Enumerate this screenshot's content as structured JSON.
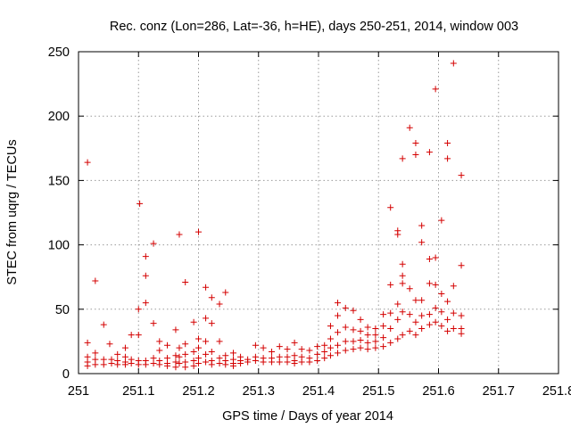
{
  "chart_data": {
    "type": "scatter",
    "title": "Rec. conz (Lon=286, Lat=-36, h=HE), days 250-251, 2014, window 003",
    "xlabel": "GPS time / Days of year 2014",
    "ylabel": "STEC from uqrg / TECUs",
    "xlim": [
      251,
      251.8
    ],
    "ylim": [
      0,
      250
    ],
    "xticks": [
      251,
      251.1,
      251.2,
      251.3,
      251.4,
      251.5,
      251.6,
      251.7,
      251.8
    ],
    "xtick_labels": [
      "251",
      "251.1",
      "251.2",
      "251.3",
      "251.4",
      "251.5",
      "251.6",
      "251.7",
      "251.8"
    ],
    "yticks": [
      0,
      50,
      100,
      150,
      200,
      250
    ],
    "ytick_labels": [
      "0",
      "50",
      "100",
      "150",
      "200",
      "250"
    ],
    "grid": true,
    "marker": "+",
    "color": "#d40000",
    "points": [
      [
        251.015,
        164
      ],
      [
        251.015,
        24
      ],
      [
        251.015,
        13
      ],
      [
        251.015,
        9
      ],
      [
        251.015,
        6
      ],
      [
        251.028,
        72
      ],
      [
        251.028,
        16
      ],
      [
        251.028,
        11
      ],
      [
        251.028,
        7
      ],
      [
        251.042,
        38
      ],
      [
        251.042,
        11
      ],
      [
        251.042,
        7
      ],
      [
        251.052,
        23
      ],
      [
        251.055,
        11
      ],
      [
        251.055,
        8
      ],
      [
        251.065,
        15
      ],
      [
        251.065,
        10
      ],
      [
        251.065,
        7
      ],
      [
        251.078,
        20
      ],
      [
        251.078,
        13
      ],
      [
        251.078,
        9
      ],
      [
        251.078,
        7
      ],
      [
        251.088,
        30
      ],
      [
        251.088,
        11
      ],
      [
        251.088,
        8
      ],
      [
        251.1,
        50
      ],
      [
        251.1,
        30
      ],
      [
        251.1,
        10
      ],
      [
        251.1,
        7
      ],
      [
        251.102,
        132
      ],
      [
        251.112,
        91
      ],
      [
        251.112,
        76
      ],
      [
        251.112,
        55
      ],
      [
        251.112,
        10
      ],
      [
        251.112,
        7
      ],
      [
        251.125,
        101
      ],
      [
        251.125,
        39
      ],
      [
        251.125,
        12
      ],
      [
        251.125,
        8
      ],
      [
        251.135,
        25
      ],
      [
        251.135,
        18
      ],
      [
        251.135,
        10
      ],
      [
        251.135,
        7
      ],
      [
        251.148,
        22
      ],
      [
        251.148,
        12
      ],
      [
        251.148,
        8
      ],
      [
        251.148,
        6
      ],
      [
        251.162,
        34
      ],
      [
        251.162,
        14
      ],
      [
        251.162,
        9
      ],
      [
        251.162,
        5
      ],
      [
        251.168,
        108
      ],
      [
        251.168,
        20
      ],
      [
        251.168,
        13
      ],
      [
        251.168,
        8
      ],
      [
        251.178,
        71
      ],
      [
        251.178,
        23
      ],
      [
        251.178,
        15
      ],
      [
        251.178,
        9
      ],
      [
        251.178,
        5
      ],
      [
        251.192,
        40
      ],
      [
        251.192,
        17
      ],
      [
        251.192,
        10
      ],
      [
        251.192,
        6
      ],
      [
        251.2,
        110
      ],
      [
        251.2,
        27
      ],
      [
        251.2,
        20
      ],
      [
        251.2,
        12
      ],
      [
        251.2,
        8
      ],
      [
        251.212,
        67
      ],
      [
        251.212,
        43
      ],
      [
        251.212,
        25
      ],
      [
        251.212,
        15
      ],
      [
        251.212,
        9
      ],
      [
        251.222,
        59
      ],
      [
        251.222,
        39
      ],
      [
        251.222,
        17
      ],
      [
        251.222,
        10
      ],
      [
        251.222,
        7
      ],
      [
        251.235,
        54
      ],
      [
        251.235,
        25
      ],
      [
        251.235,
        12
      ],
      [
        251.235,
        8
      ],
      [
        251.245,
        63
      ],
      [
        251.245,
        14
      ],
      [
        251.245,
        10
      ],
      [
        251.245,
        7
      ],
      [
        251.258,
        16
      ],
      [
        251.258,
        11
      ],
      [
        251.258,
        8
      ],
      [
        251.258,
        6
      ],
      [
        251.27,
        13
      ],
      [
        251.27,
        10
      ],
      [
        251.27,
        8
      ],
      [
        251.282,
        11
      ],
      [
        251.282,
        9
      ],
      [
        251.295,
        22
      ],
      [
        251.295,
        13
      ],
      [
        251.295,
        10
      ],
      [
        251.308,
        20
      ],
      [
        251.308,
        12
      ],
      [
        251.308,
        9
      ],
      [
        251.322,
        17
      ],
      [
        251.322,
        12
      ],
      [
        251.322,
        9
      ],
      [
        251.335,
        21
      ],
      [
        251.335,
        13
      ],
      [
        251.335,
        9
      ],
      [
        251.348,
        19
      ],
      [
        251.348,
        13
      ],
      [
        251.348,
        9
      ],
      [
        251.36,
        24
      ],
      [
        251.36,
        14
      ],
      [
        251.36,
        10
      ],
      [
        251.36,
        8
      ],
      [
        251.372,
        19
      ],
      [
        251.372,
        13
      ],
      [
        251.372,
        9
      ],
      [
        251.385,
        18
      ],
      [
        251.385,
        12
      ],
      [
        251.385,
        9
      ],
      [
        251.398,
        21
      ],
      [
        251.398,
        15
      ],
      [
        251.398,
        10
      ],
      [
        251.41,
        22
      ],
      [
        251.41,
        17
      ],
      [
        251.41,
        12
      ],
      [
        251.42,
        37
      ],
      [
        251.42,
        27
      ],
      [
        251.42,
        20
      ],
      [
        251.42,
        14
      ],
      [
        251.432,
        55
      ],
      [
        251.432,
        45
      ],
      [
        251.432,
        32
      ],
      [
        251.432,
        22
      ],
      [
        251.432,
        16
      ],
      [
        251.445,
        51
      ],
      [
        251.445,
        36
      ],
      [
        251.445,
        25
      ],
      [
        251.445,
        18
      ],
      [
        251.458,
        49
      ],
      [
        251.458,
        34
      ],
      [
        251.458,
        25
      ],
      [
        251.458,
        19
      ],
      [
        251.47,
        42
      ],
      [
        251.47,
        33
      ],
      [
        251.47,
        26
      ],
      [
        251.47,
        20
      ],
      [
        251.482,
        36
      ],
      [
        251.482,
        30
      ],
      [
        251.482,
        24
      ],
      [
        251.482,
        19
      ],
      [
        251.495,
        35
      ],
      [
        251.495,
        30
      ],
      [
        251.495,
        25
      ],
      [
        251.495,
        20
      ],
      [
        251.508,
        46
      ],
      [
        251.508,
        37
      ],
      [
        251.508,
        28
      ],
      [
        251.508,
        21
      ],
      [
        251.52,
        129
      ],
      [
        251.52,
        69
      ],
      [
        251.52,
        47
      ],
      [
        251.52,
        35
      ],
      [
        251.52,
        24
      ],
      [
        251.532,
        111
      ],
      [
        251.532,
        108
      ],
      [
        251.532,
        54
      ],
      [
        251.532,
        42
      ],
      [
        251.532,
        27
      ],
      [
        251.54,
        167
      ],
      [
        251.54,
        85
      ],
      [
        251.54,
        76
      ],
      [
        251.54,
        70
      ],
      [
        251.54,
        48
      ],
      [
        251.54,
        30
      ],
      [
        251.552,
        191
      ],
      [
        251.552,
        66
      ],
      [
        251.552,
        46
      ],
      [
        251.552,
        33
      ],
      [
        251.562,
        179
      ],
      [
        251.562,
        170
      ],
      [
        251.562,
        57
      ],
      [
        251.562,
        40
      ],
      [
        251.562,
        30
      ],
      [
        251.572,
        115
      ],
      [
        251.572,
        102
      ],
      [
        251.572,
        57
      ],
      [
        251.572,
        45
      ],
      [
        251.572,
        35
      ],
      [
        251.585,
        172
      ],
      [
        251.585,
        89
      ],
      [
        251.585,
        70
      ],
      [
        251.585,
        46
      ],
      [
        251.585,
        38
      ],
      [
        251.595,
        221
      ],
      [
        251.595,
        90
      ],
      [
        251.595,
        69
      ],
      [
        251.595,
        51
      ],
      [
        251.595,
        40
      ],
      [
        251.605,
        119
      ],
      [
        251.605,
        62
      ],
      [
        251.605,
        48
      ],
      [
        251.605,
        37
      ],
      [
        251.615,
        179
      ],
      [
        251.615,
        167
      ],
      [
        251.615,
        56
      ],
      [
        251.615,
        42
      ],
      [
        251.615,
        33
      ],
      [
        251.625,
        241
      ],
      [
        251.625,
        68
      ],
      [
        251.625,
        47
      ],
      [
        251.625,
        35
      ],
      [
        251.638,
        154
      ],
      [
        251.638,
        84
      ],
      [
        251.638,
        45
      ],
      [
        251.638,
        35
      ],
      [
        251.638,
        31
      ]
    ]
  }
}
